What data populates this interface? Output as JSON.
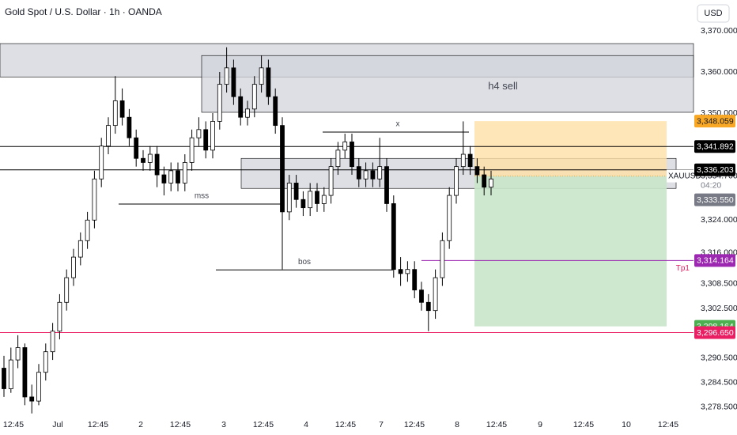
{
  "chart_data": {
    "type": "candlestick",
    "title": "Gold Spot / U.S. Dollar · 1h · OANDA",
    "currency": "USD",
    "symbol": "XAUUSD",
    "last_price": {
      "value": 3334.7,
      "label": "3,334.700"
    },
    "countdown": "04:20",
    "categories": [
      "12:45",
      "Jul",
      "12:45",
      "2",
      "12:45",
      "3",
      "12:45",
      "4",
      "12:45",
      "7",
      "12:45",
      "8",
      "12:45",
      "9",
      "12:45",
      "10",
      "12:45"
    ],
    "ylim": [
      3275.6,
      3377.5
    ],
    "yticks": [
      {
        "value": 3370,
        "label": "3,370.000"
      },
      {
        "value": 3360,
        "label": "3,360.000"
      },
      {
        "value": 3350,
        "label": "3,350.000"
      },
      {
        "value": 3324,
        "label": "3,324.000"
      },
      {
        "value": 3316,
        "label": "3,316.000"
      },
      {
        "value": 3308.5,
        "label": "3,308.500"
      },
      {
        "value": 3302.5,
        "label": "3,302.500"
      },
      {
        "value": 3290.5,
        "label": "3,290.500"
      },
      {
        "value": 3284.5,
        "label": "3,284.500"
      },
      {
        "value": 3278.5,
        "label": "3,278.500"
      }
    ],
    "up_color": "#ffffff",
    "down_color": "#000000",
    "ohlc": [
      [
        3288,
        3291,
        3281,
        3283
      ],
      [
        3283,
        3293,
        3282,
        3290
      ],
      [
        3290,
        3296,
        3288,
        3293
      ],
      [
        3293,
        3294,
        3279,
        3281
      ],
      [
        3281,
        3284,
        3277,
        3280
      ],
      [
        3280,
        3289,
        3279,
        3287
      ],
      [
        3287,
        3294,
        3285,
        3292
      ],
      [
        3292,
        3299,
        3290,
        3297
      ],
      [
        3297,
        3306,
        3295,
        3304
      ],
      [
        3304,
        3312,
        3302,
        3310
      ],
      [
        3310,
        3317,
        3308,
        3315
      ],
      [
        3315,
        3321,
        3313,
        3319
      ],
      [
        3319,
        3326,
        3317,
        3324
      ],
      [
        3324,
        3336,
        3322,
        3334
      ],
      [
        3334,
        3344,
        3332,
        3342
      ],
      [
        3342,
        3349,
        3340,
        3347
      ],
      [
        3347,
        3359,
        3345,
        3353
      ],
      [
        3353,
        3356,
        3347,
        3349
      ],
      [
        3349,
        3351,
        3342,
        3344
      ],
      [
        3344,
        3346,
        3337,
        3339
      ],
      [
        3339,
        3341,
        3336,
        3338
      ],
      [
        3338,
        3342,
        3336,
        3340
      ],
      [
        3340,
        3342,
        3332,
        3335
      ],
      [
        3335,
        3337,
        3330,
        3333
      ],
      [
        3333,
        3338,
        3331,
        3336
      ],
      [
        3336,
        3338,
        3331,
        3333
      ],
      [
        3333,
        3340,
        3331,
        3338
      ],
      [
        3338,
        3346,
        3336,
        3344
      ],
      [
        3344,
        3349,
        3342,
        3346
      ],
      [
        3346,
        3348,
        3339,
        3341
      ],
      [
        3341,
        3350,
        3339,
        3348
      ],
      [
        3348,
        3360,
        3346,
        3357
      ],
      [
        3357,
        3366,
        3355,
        3361
      ],
      [
        3361,
        3363,
        3352,
        3354
      ],
      [
        3354,
        3356,
        3347,
        3349
      ],
      [
        3349,
        3353,
        3347,
        3351
      ],
      [
        3351,
        3359,
        3349,
        3357
      ],
      [
        3357,
        3364,
        3355,
        3361
      ],
      [
        3361,
        3363,
        3352,
        3354
      ],
      [
        3354,
        3356,
        3345,
        3347
      ],
      [
        3347,
        3349,
        3312,
        3326
      ],
      [
        3326,
        3335,
        3324,
        3333
      ],
      [
        3333,
        3335,
        3327,
        3329
      ],
      [
        3329,
        3331,
        3325,
        3327
      ],
      [
        3327,
        3333,
        3325,
        3331
      ],
      [
        3331,
        3333,
        3326,
        3328
      ],
      [
        3328,
        3332,
        3326,
        3330
      ],
      [
        3330,
        3339,
        3328,
        3337
      ],
      [
        3337,
        3343,
        3335,
        3341
      ],
      [
        3341,
        3345,
        3339,
        3343
      ],
      [
        3343,
        3345,
        3335,
        3337
      ],
      [
        3337,
        3339,
        3332,
        3334
      ],
      [
        3334,
        3338,
        3332,
        3336
      ],
      [
        3336,
        3338,
        3332,
        3334
      ],
      [
        3334,
        3344,
        3332,
        3337
      ],
      [
        3337,
        3339,
        3326,
        3328
      ],
      [
        3328,
        3330,
        3310,
        3312
      ],
      [
        3312,
        3315,
        3308,
        3311
      ],
      [
        3311,
        3314,
        3309,
        3312
      ],
      [
        3312,
        3314,
        3305,
        3307
      ],
      [
        3307,
        3309,
        3302,
        3304
      ],
      [
        3304,
        3306,
        3297,
        3302
      ],
      [
        3302,
        3312,
        3300,
        3310
      ],
      [
        3310,
        3321,
        3308,
        3319
      ],
      [
        3319,
        3332,
        3317,
        3330
      ],
      [
        3330,
        3339,
        3328,
        3337
      ],
      [
        3337,
        3348,
        3335,
        3340
      ],
      [
        3340,
        3342,
        3335,
        3337
      ],
      [
        3337,
        3339,
        3333,
        3335
      ],
      [
        3335,
        3337,
        3330,
        3332
      ],
      [
        3332,
        3336,
        3330,
        3334
      ]
    ],
    "zones": [
      {
        "top": 3366.9,
        "bottom": 3358.8,
        "color": "#d1d4dc"
      },
      {
        "top": 3364,
        "bottom": 3350.2,
        "color": "#d1d4dc",
        "label": "h4 sell"
      },
      {
        "top": 3339,
        "bottom": 3331.7,
        "color": "#d1d4dc"
      }
    ],
    "levels": [
      {
        "value": 3345.4,
        "label": "x"
      },
      {
        "value": 3327.9,
        "label": "mss"
      },
      {
        "value": 3311.9,
        "label": "bos"
      }
    ],
    "position": {
      "stop": 3348.059,
      "entry": 3334.7,
      "target": 3298.164,
      "stop_color": "#ffe0a6",
      "target_color": "#c8e6c9"
    },
    "tp_label": "Tp1",
    "price_labels": [
      {
        "value": 3348.059,
        "label": "3,348.059",
        "color": "#f9a825",
        "text_color": "#131722"
      },
      {
        "value": 3341.892,
        "label": "3,341.892",
        "color": "#000000",
        "text_color": "#ffffff"
      },
      {
        "value": 3336.203,
        "label": "3,336.203",
        "color": "#000000",
        "text_color": "#ffffff"
      },
      {
        "value": 3333.55,
        "label": "3,333.550",
        "color": "#787b86",
        "text_color": "#ffffff"
      },
      {
        "value": 3314.164,
        "label": "3,314.164",
        "color": "#9c27b0",
        "text_color": "#ffffff"
      },
      {
        "value": 3298.164,
        "label": "3,298.164",
        "color": "#4caf50",
        "text_color": "#ffffff"
      },
      {
        "value": 3296.65,
        "label": "3,296.650",
        "color": "#e91e63",
        "text_color": "#ffffff"
      }
    ]
  }
}
